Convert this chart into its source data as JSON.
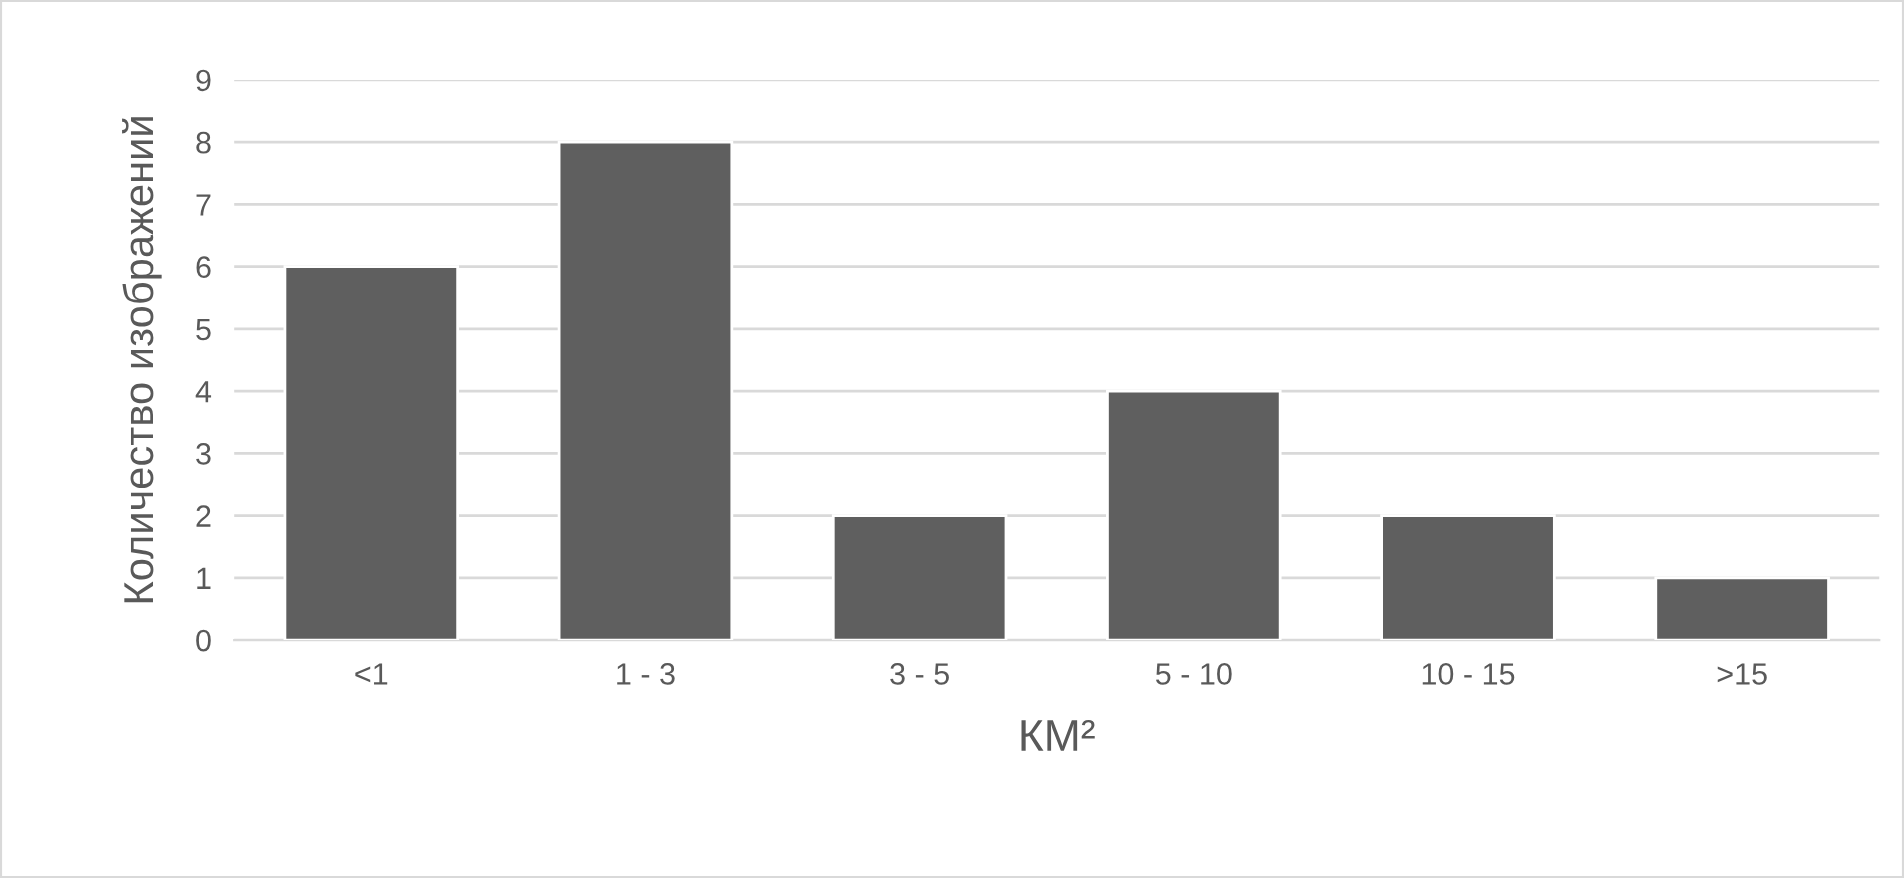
{
  "chart_data": {
    "type": "bar",
    "categories": [
      "<1",
      "1 - 3",
      "3 - 5",
      "5 - 10",
      "10 - 15",
      ">15"
    ],
    "values": [
      6,
      8,
      2,
      4,
      2,
      1
    ],
    "color": "#5f5f5f",
    "xlabel": "КМ²",
    "ylabel": "Количество изображений",
    "ylim": [
      0,
      9
    ],
    "yticks": [
      0,
      1,
      2,
      3,
      4,
      5,
      6,
      7,
      8,
      9
    ],
    "grid": "y"
  }
}
